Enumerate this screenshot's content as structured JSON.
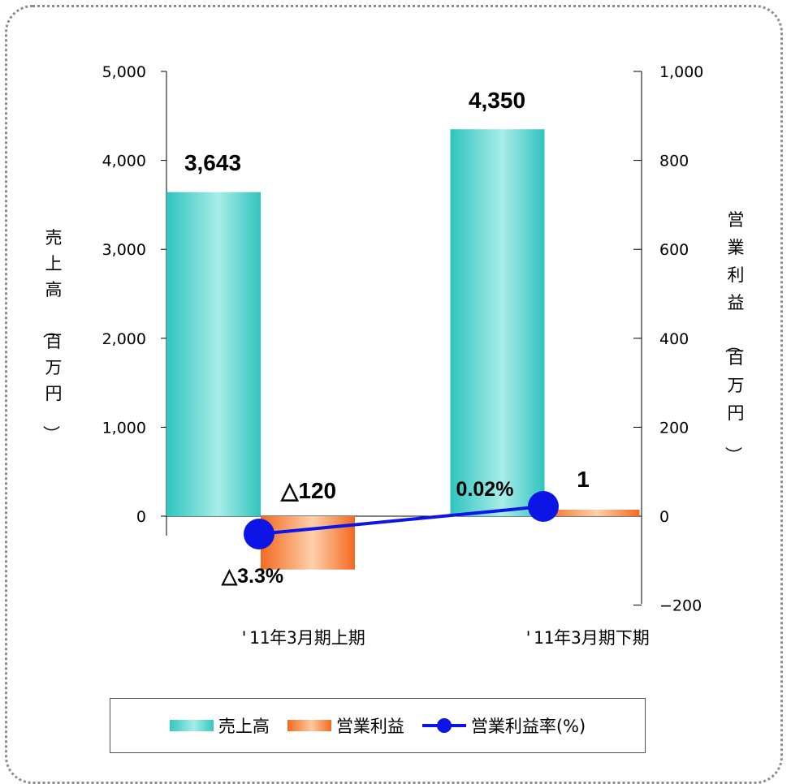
{
  "chart_data": {
    "type": "bar",
    "categories": [
      "'11年3月期上期",
      "'11年3月期下期"
    ],
    "y_left": {
      "label": "売上高（百万円）",
      "ticks": [
        "5,000",
        "4,000",
        "3,000",
        "2,000",
        "1,000",
        "0"
      ],
      "ylim": [
        0,
        5000
      ]
    },
    "y_right": {
      "label": "営業利益（百万円）",
      "ticks": [
        "1,000",
        "800",
        "600",
        "400",
        "200",
        "0",
        "−200"
      ],
      "ylim": [
        -200,
        1000
      ]
    },
    "series": [
      {
        "name": "売上高",
        "axis": "left",
        "values": [
          3643,
          4350
        ],
        "labels": [
          "3,643",
          "4,350"
        ],
        "color": "#33c6c0"
      },
      {
        "name": "営業利益",
        "axis": "right",
        "values": [
          -120,
          1
        ],
        "labels": [
          "△120",
          "1"
        ],
        "color": "#f26a1f"
      },
      {
        "name": "営業利益率(%)",
        "type": "line",
        "values": [
          -3.3,
          0.02
        ],
        "labels": [
          "△3.3%",
          "0.02%"
        ],
        "color": "#0d15e6"
      }
    ],
    "legend": {
      "placement": "bottom",
      "items": [
        "売上高",
        "営業利益",
        "営業利益率(%)"
      ]
    }
  }
}
